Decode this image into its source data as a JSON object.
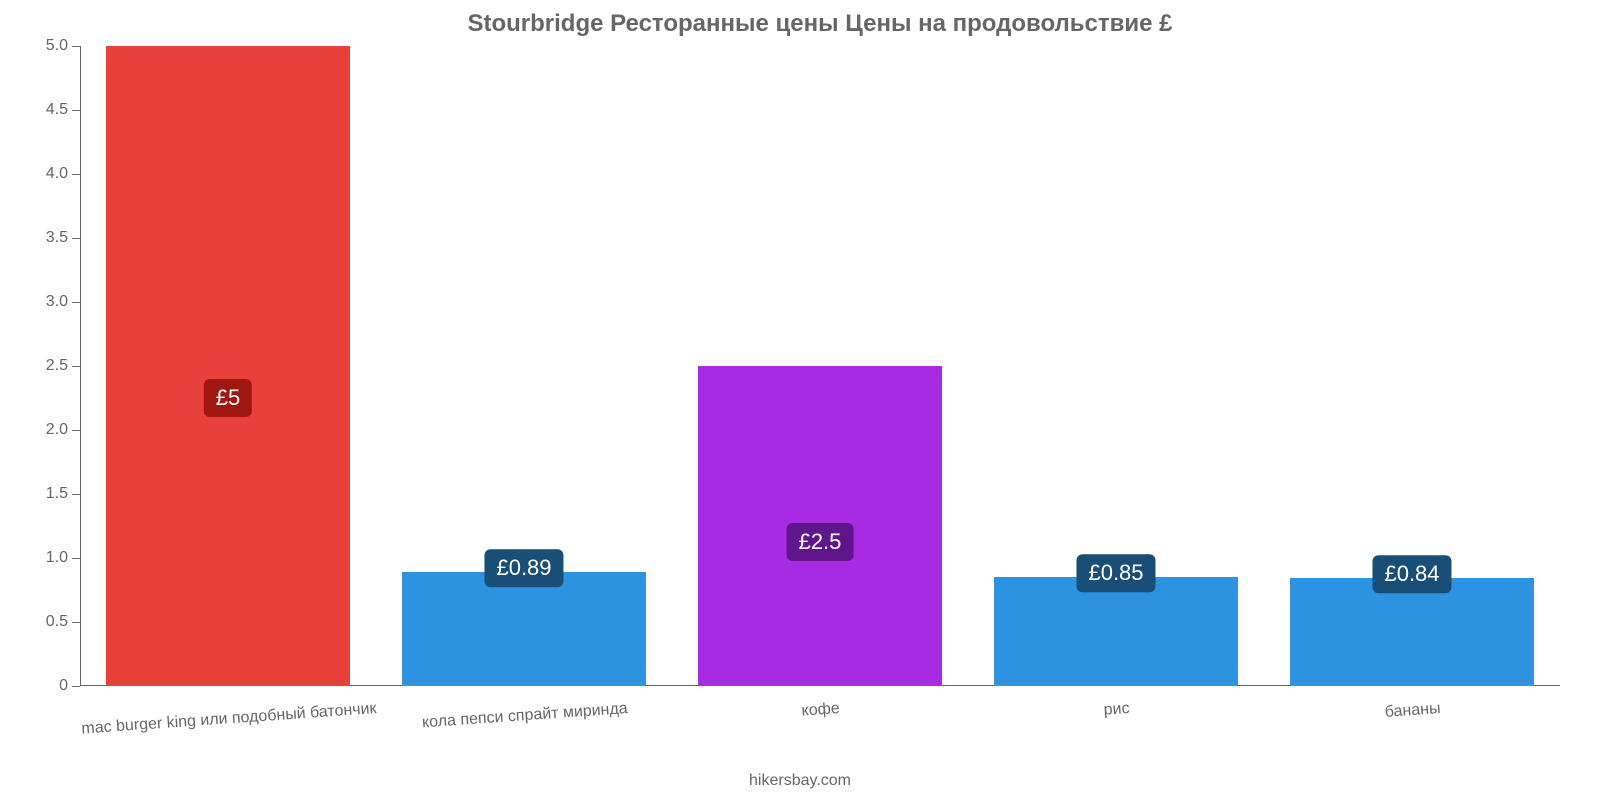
{
  "chart": {
    "type": "bar",
    "title": "Stourbridge Ресторанные цены Цены на продовольствие £",
    "title_fontsize": 24,
    "title_color": "#666666",
    "background_color": "#ffffff",
    "axis_color": "#666666",
    "label_color": "#666666",
    "label_fontsize": 16,
    "tick_fontsize": 16,
    "ylim": [
      0,
      5
    ],
    "ytick_step": 0.5,
    "yticks": [
      "0",
      "0.5",
      "1.0",
      "1.5",
      "2.0",
      "2.5",
      "3.0",
      "3.5",
      "4.0",
      "4.5",
      "5.0"
    ],
    "bar_width_pct": 16.5,
    "categories": [
      "mac burger king или подобный батончик",
      "кола пепси спрайт миринда",
      "кофе",
      "рис",
      "бананы"
    ],
    "values": [
      5,
      0.89,
      2.5,
      0.85,
      0.84
    ],
    "value_labels": [
      "£5",
      "£0.89",
      "£2.5",
      "£0.85",
      "£0.84"
    ],
    "bar_colors": [
      "#e8403a",
      "#2d92e0",
      "#a62be2",
      "#2d92e0",
      "#2d92e0"
    ],
    "badge_colors": [
      "#a01610",
      "#194e77",
      "#5e168a",
      "#194e77",
      "#194e77"
    ],
    "badge_text_color": "#ffffff",
    "badge_fontsize": 22,
    "attribution": "hikersbay.com",
    "attribution_fontsize": 16
  }
}
